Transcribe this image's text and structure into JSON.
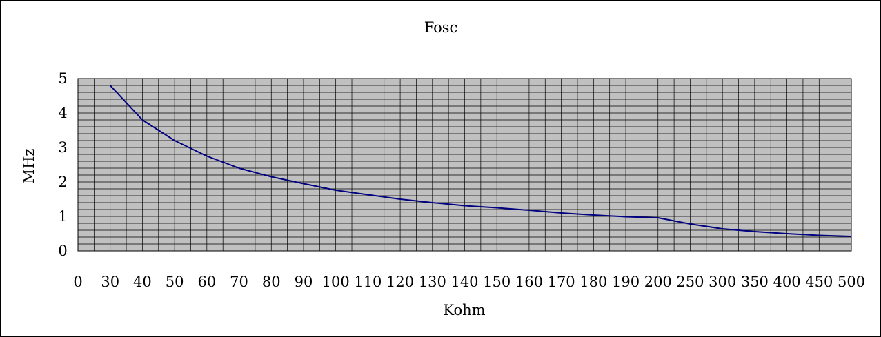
{
  "chart_data": {
    "type": "line",
    "title": "Fosc",
    "xlabel": "Kohm",
    "ylabel": "MHz",
    "categories": [
      "0",
      "30",
      "40",
      "50",
      "60",
      "70",
      "80",
      "90",
      "100",
      "110",
      "120",
      "130",
      "140",
      "150",
      "160",
      "170",
      "180",
      "190",
      "200",
      "250",
      "300",
      "350",
      "400",
      "450",
      "500"
    ],
    "series": [
      {
        "values": [
          null,
          4.8,
          3.8,
          3.2,
          2.75,
          2.4,
          2.15,
          1.95,
          1.76,
          1.63,
          1.5,
          1.4,
          1.31,
          1.25,
          1.18,
          1.1,
          1.04,
          0.99,
          0.96,
          0.78,
          0.64,
          0.56,
          0.5,
          0.45,
          0.42
        ],
        "color": "#000080"
      }
    ],
    "ylim": [
      0,
      5
    ],
    "yticks": [
      "0",
      "1",
      "2",
      "3",
      "4",
      "5"
    ],
    "grid": true,
    "plot_background": "#c0c0c0",
    "legend": "none"
  }
}
